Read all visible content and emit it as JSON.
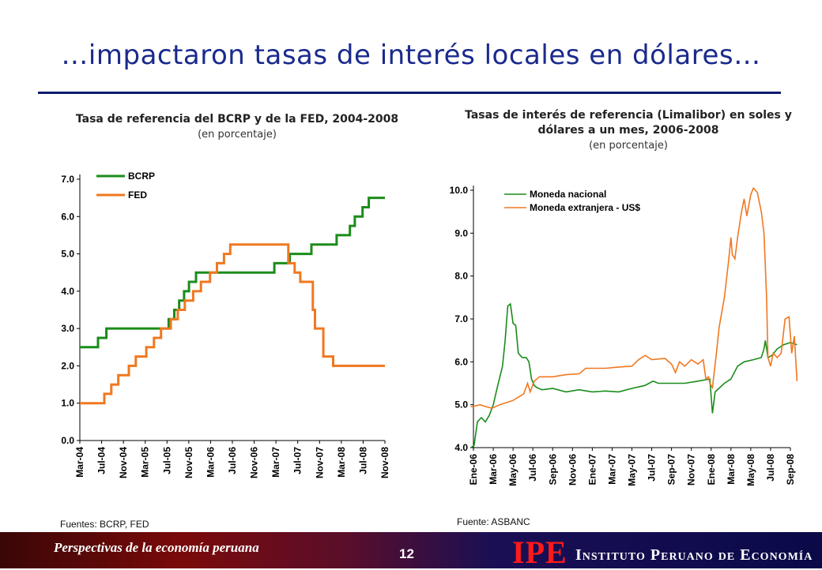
{
  "slide": {
    "title": "…impactaron tasas de interés locales en dólares…",
    "footer_text": "Perspectivas de la economía peruana",
    "page_number": "12",
    "logo_text": "IPE",
    "institute_name": "Instituto Peruano de Economía"
  },
  "colors": {
    "green": "#1a8c1a",
    "orange": "#f07820",
    "title_blue": "#1a2a8c"
  },
  "chart_data": [
    {
      "type": "line",
      "title": "Tasa de referencia del BCRP y de la FED, 2004-2008",
      "subtitle": "(en porcentaje)",
      "source": "Fuentes: BCRP, FED",
      "x_ticks": [
        "Mar-04",
        "Jul-04",
        "Nov-04",
        "Mar-05",
        "Jul-05",
        "Nov-05",
        "Mar-06",
        "Jul-06",
        "Nov-06",
        "Mar-07",
        "Jul-07",
        "Nov-07",
        "Mar-08",
        "Jul-08",
        "Nov-08"
      ],
      "y_ticks": [
        "0.0",
        "1.0",
        "2.0",
        "3.0",
        "4.0",
        "5.0",
        "6.0",
        "7.0"
      ],
      "ylim": [
        0,
        7
      ],
      "legend": "top-left",
      "grid": false,
      "series": [
        {
          "name": "BCRP",
          "color": "#1a8c1a",
          "step": true,
          "points": [
            [
              0,
              2.5
            ],
            [
              2.6,
              2.75
            ],
            [
              3.8,
              3.0
            ],
            [
              12.7,
              3.25
            ],
            [
              13.5,
              3.5
            ],
            [
              14.2,
              3.75
            ],
            [
              14.9,
              4.0
            ],
            [
              15.6,
              4.25
            ],
            [
              16.6,
              4.5
            ],
            [
              27.8,
              4.75
            ],
            [
              30.0,
              5.0
            ],
            [
              33.1,
              5.25
            ],
            [
              36.7,
              5.5
            ],
            [
              38.6,
              5.75
            ],
            [
              39.3,
              6.0
            ],
            [
              40.4,
              6.25
            ],
            [
              41.3,
              6.5
            ],
            [
              43.6,
              6.5
            ]
          ]
        },
        {
          "name": "FED",
          "color": "#f07820",
          "step": true,
          "points": [
            [
              0,
              1.0
            ],
            [
              3.5,
              1.25
            ],
            [
              4.5,
              1.5
            ],
            [
              5.5,
              1.75
            ],
            [
              7.0,
              2.0
            ],
            [
              8.0,
              2.25
            ],
            [
              9.5,
              2.5
            ],
            [
              10.6,
              2.75
            ],
            [
              11.6,
              3.0
            ],
            [
              13.0,
              3.25
            ],
            [
              14.0,
              3.5
            ],
            [
              15.0,
              3.75
            ],
            [
              16.2,
              4.0
            ],
            [
              17.3,
              4.25
            ],
            [
              18.6,
              4.5
            ],
            [
              19.6,
              4.75
            ],
            [
              20.6,
              5.0
            ],
            [
              21.5,
              5.25
            ],
            [
              28.9,
              5.25
            ],
            [
              29.8,
              4.75
            ],
            [
              30.7,
              4.5
            ],
            [
              31.5,
              4.25
            ],
            [
              33.3,
              3.5
            ],
            [
              33.6,
              3.0
            ],
            [
              34.8,
              2.25
            ],
            [
              36.2,
              2.0
            ],
            [
              43.6,
              2.0
            ]
          ]
        }
      ]
    },
    {
      "type": "line",
      "title": "Tasas de interés de referencia (Limalibor) en soles y dólares a un mes, 2006-2008",
      "subtitle": "(en porcentaje)",
      "source": "Fuente: ASBANC",
      "x_ticks": [
        "Ene-06",
        "Mar-06",
        "May-06",
        "Jul-06",
        "Sep-06",
        "Nov-06",
        "Ene-07",
        "Mar-07",
        "May-07",
        "Jul-07",
        "Sep-07",
        "Nov-07",
        "Ene-08",
        "Mar-08",
        "May-08",
        "Jul-08",
        "Sep-08"
      ],
      "y_ticks": [
        "4.0",
        "5.0",
        "6.0",
        "7.0",
        "8.0",
        "9.0",
        "10.0"
      ],
      "ylim": [
        4,
        10
      ],
      "legend": "top-left",
      "grid": false,
      "series": [
        {
          "name": "Moneda nacional",
          "color": "#1a8c1a",
          "points": [
            [
              -0.2,
              4.0
            ],
            [
              0.05,
              4.05
            ],
            [
              0.3,
              4.6
            ],
            [
              0.6,
              4.7
            ],
            [
              0.9,
              4.6
            ],
            [
              1.2,
              4.75
            ],
            [
              1.5,
              5.0
            ],
            [
              1.8,
              5.4
            ],
            [
              2.2,
              5.9
            ],
            [
              2.4,
              6.5
            ],
            [
              2.6,
              7.3
            ],
            [
              2.8,
              7.35
            ],
            [
              3.0,
              6.9
            ],
            [
              3.2,
              6.85
            ],
            [
              3.4,
              6.2
            ],
            [
              3.7,
              6.1
            ],
            [
              4.0,
              6.1
            ],
            [
              4.2,
              6.0
            ],
            [
              4.4,
              5.6
            ],
            [
              4.6,
              5.45
            ],
            [
              4.8,
              5.4
            ],
            [
              5.2,
              5.35
            ],
            [
              6.0,
              5.38
            ],
            [
              7.0,
              5.3
            ],
            [
              8.0,
              5.35
            ],
            [
              9.0,
              5.3
            ],
            [
              10.0,
              5.32
            ],
            [
              11.0,
              5.3
            ],
            [
              12.0,
              5.38
            ],
            [
              13.0,
              5.45
            ],
            [
              13.6,
              5.55
            ],
            [
              14.0,
              5.5
            ],
            [
              15.0,
              5.5
            ],
            [
              16.0,
              5.5
            ],
            [
              17.0,
              5.55
            ],
            [
              17.9,
              5.6
            ],
            [
              18.1,
              4.8
            ],
            [
              18.3,
              5.3
            ],
            [
              19.0,
              5.5
            ],
            [
              19.5,
              5.6
            ],
            [
              20.0,
              5.9
            ],
            [
              20.5,
              6.0
            ],
            [
              21.2,
              6.05
            ],
            [
              21.8,
              6.1
            ],
            [
              22.0,
              6.3
            ],
            [
              22.1,
              6.5
            ],
            [
              22.3,
              6.1
            ],
            [
              22.6,
              6.15
            ],
            [
              23.0,
              6.3
            ],
            [
              23.5,
              6.4
            ],
            [
              24.0,
              6.45
            ],
            [
              24.5,
              6.4
            ]
          ]
        },
        {
          "name": "Moneda extranjera - US$",
          "color": "#f07820",
          "points": [
            [
              -0.2,
              4.95
            ],
            [
              0.5,
              5.0
            ],
            [
              1.0,
              4.95
            ],
            [
              1.4,
              4.92
            ],
            [
              2.0,
              5.0
            ],
            [
              3.0,
              5.1
            ],
            [
              3.8,
              5.25
            ],
            [
              4.1,
              5.5
            ],
            [
              4.3,
              5.3
            ],
            [
              4.6,
              5.55
            ],
            [
              5.0,
              5.65
            ],
            [
              6.0,
              5.65
            ],
            [
              7.0,
              5.7
            ],
            [
              8.0,
              5.72
            ],
            [
              8.5,
              5.85
            ],
            [
              10.0,
              5.85
            ],
            [
              11.0,
              5.88
            ],
            [
              12.0,
              5.9
            ],
            [
              12.5,
              6.05
            ],
            [
              13.0,
              6.15
            ],
            [
              13.5,
              6.05
            ],
            [
              14.5,
              6.08
            ],
            [
              15.0,
              5.95
            ],
            [
              15.3,
              5.75
            ],
            [
              15.6,
              6.0
            ],
            [
              16.0,
              5.9
            ],
            [
              16.5,
              6.05
            ],
            [
              17.0,
              5.95
            ],
            [
              17.4,
              6.05
            ],
            [
              17.6,
              5.6
            ],
            [
              17.8,
              5.65
            ],
            [
              17.9,
              5.5
            ],
            [
              18.1,
              5.4
            ],
            [
              18.4,
              6.2
            ],
            [
              18.6,
              6.8
            ],
            [
              19.0,
              7.5
            ],
            [
              19.3,
              8.3
            ],
            [
              19.5,
              8.9
            ],
            [
              19.6,
              8.5
            ],
            [
              19.8,
              8.4
            ],
            [
              20.0,
              8.9
            ],
            [
              20.3,
              9.5
            ],
            [
              20.5,
              9.8
            ],
            [
              20.7,
              9.4
            ],
            [
              21.0,
              9.9
            ],
            [
              21.2,
              10.05
            ],
            [
              21.5,
              9.95
            ],
            [
              21.8,
              9.5
            ],
            [
              22.0,
              9.0
            ],
            [
              22.2,
              7.5
            ],
            [
              22.3,
              6.1
            ],
            [
              22.5,
              5.9
            ],
            [
              22.7,
              6.2
            ],
            [
              23.0,
              6.1
            ],
            [
              23.3,
              6.2
            ],
            [
              23.6,
              7.0
            ],
            [
              23.9,
              7.05
            ],
            [
              24.1,
              6.2
            ],
            [
              24.3,
              6.6
            ],
            [
              24.5,
              5.55
            ]
          ]
        }
      ]
    }
  ]
}
